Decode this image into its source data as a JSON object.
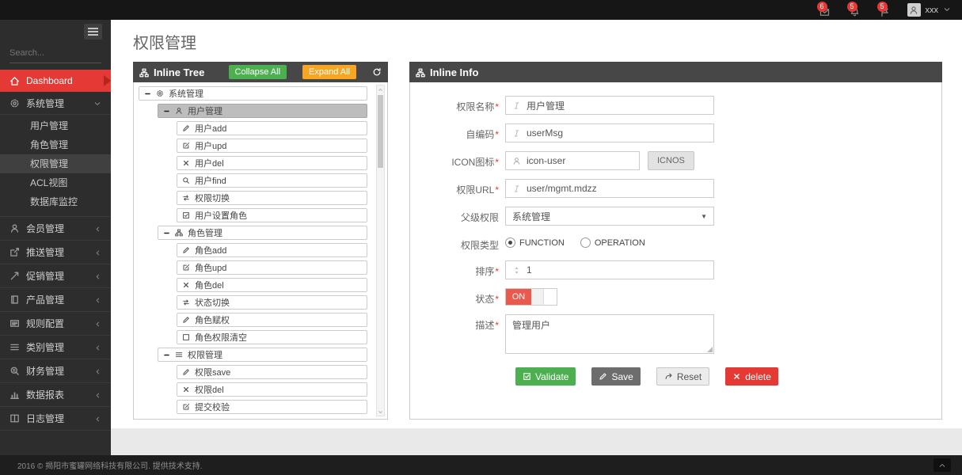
{
  "topbar": {
    "notifications": [
      {
        "icon": "envelope",
        "count": "6"
      },
      {
        "icon": "bell",
        "count": "5"
      },
      {
        "icon": "flag",
        "count": "5"
      }
    ],
    "user": {
      "name": "xxx"
    }
  },
  "sidebar": {
    "search_placeholder": "Search...",
    "dashboard_label": "Dashboard",
    "system": {
      "label": "系统管理",
      "children": [
        "用户管理",
        "角色管理",
        "权限管理",
        "ACL视图",
        "数据库监控"
      ],
      "active_child": "权限管理"
    },
    "items": [
      {
        "icon": "person",
        "label": "会员管理"
      },
      {
        "icon": "share",
        "label": "推送管理"
      },
      {
        "icon": "promo",
        "label": "促销管理"
      },
      {
        "icon": "book",
        "label": "产品管理"
      },
      {
        "icon": "news",
        "label": "规则配置"
      },
      {
        "icon": "list",
        "label": "类别管理"
      },
      {
        "icon": "finance",
        "label": "财务管理"
      },
      {
        "icon": "chart",
        "label": "数据报表"
      },
      {
        "icon": "columns",
        "label": "日志管理"
      }
    ]
  },
  "page": {
    "title": "权限管理"
  },
  "tree_panel": {
    "title": "Inline Tree",
    "collapse_label": "Collapse All",
    "expand_label": "Expand All",
    "nodes": [
      {
        "level": 1,
        "icon": "gear",
        "label": "系统管理",
        "expander": true
      },
      {
        "level": 2,
        "icon": "person",
        "label": "用户管理",
        "expander": true,
        "selected": true
      },
      {
        "level": 3,
        "icon": "pencil",
        "label": "用户add"
      },
      {
        "level": 3,
        "icon": "edit",
        "label": "用户upd"
      },
      {
        "level": 3,
        "icon": "x",
        "label": "用户del"
      },
      {
        "level": 3,
        "icon": "search",
        "label": "用户find"
      },
      {
        "level": 3,
        "icon": "switch",
        "label": "权限切换"
      },
      {
        "level": 3,
        "icon": "check-square",
        "label": "用户设置角色"
      },
      {
        "level": 2,
        "icon": "sitemap",
        "label": "角色管理",
        "expander": true
      },
      {
        "level": 3,
        "icon": "pencil",
        "label": "角色add"
      },
      {
        "level": 3,
        "icon": "edit",
        "label": "角色upd"
      },
      {
        "level": 3,
        "icon": "x",
        "label": "角色del"
      },
      {
        "level": 3,
        "icon": "switch",
        "label": "状态切换"
      },
      {
        "level": 3,
        "icon": "pencil",
        "label": "角色赋权"
      },
      {
        "level": 3,
        "icon": "square",
        "label": "角色权限清空"
      },
      {
        "level": 2,
        "icon": "list",
        "label": "权限管理",
        "expander": true
      },
      {
        "level": 3,
        "icon": "pencil",
        "label": "权限save"
      },
      {
        "level": 3,
        "icon": "x",
        "label": "权限del"
      },
      {
        "level": 3,
        "icon": "edit",
        "label": "提交校验"
      }
    ]
  },
  "info_panel": {
    "title": "Inline Info",
    "fields": [
      {
        "name": "permission-name",
        "label": "权限名称",
        "required": true,
        "type": "text",
        "icon": "italic",
        "value": "用户管理"
      },
      {
        "name": "code",
        "label": "自编码",
        "required": true,
        "type": "text",
        "icon": "italic",
        "value": "userMsg"
      },
      {
        "name": "icon",
        "label": "ICON图标",
        "required": true,
        "type": "text-button",
        "icon": "person",
        "value": "icon-user",
        "button": "ICNOS"
      },
      {
        "name": "url",
        "label": "权限URL",
        "required": true,
        "type": "text",
        "icon": "italic",
        "value": "user/mgmt.mdzz"
      },
      {
        "name": "parent-permission",
        "label": "父级权限",
        "required": false,
        "type": "select",
        "value": "系统管理"
      },
      {
        "name": "permission-type",
        "label": "权限类型",
        "required": false,
        "type": "radio",
        "options": [
          {
            "label": "FUNCTION",
            "checked": true
          },
          {
            "label": "OPERATION",
            "checked": false
          }
        ]
      },
      {
        "name": "sort-order",
        "label": "排序",
        "required": true,
        "type": "text",
        "icon": "sort",
        "value": "1"
      },
      {
        "name": "status",
        "label": "状态",
        "required": true,
        "type": "toggle",
        "value": "ON"
      },
      {
        "name": "description",
        "label": "描述",
        "required": true,
        "type": "textarea",
        "value": "管理用户"
      }
    ],
    "buttons": [
      {
        "name": "validate-button",
        "label": "Validate",
        "icon": "check-square",
        "style": "green"
      },
      {
        "name": "save-button",
        "label": "Save",
        "icon": "pencil",
        "style": "dark"
      },
      {
        "name": "reset-button",
        "label": "Reset",
        "icon": "redo",
        "style": "light"
      },
      {
        "name": "delete-button",
        "label": "delete",
        "icon": "x",
        "style": "red"
      }
    ]
  },
  "footer": {
    "text": "2016 © 揭阳市蜜罐网络科技有限公司. 提供技术支持."
  },
  "colors": {
    "accent_red": "#e53935",
    "green": "#4caf50",
    "orange": "#f6a623",
    "toggle_on": "#e9594c"
  }
}
